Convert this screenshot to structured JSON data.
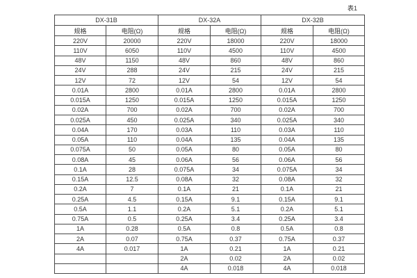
{
  "page": {
    "caption": "表1"
  },
  "table": {
    "groups": [
      {
        "name": "DX-31B",
        "spec_header": "规格",
        "res_header": "电阻(Ω)"
      },
      {
        "name": "DX-32A",
        "spec_header": "规格",
        "res_header": "电阻(Ω)"
      },
      {
        "name": "DX-32B",
        "spec_header": "规格",
        "res_header": "电阻(Ω)"
      }
    ],
    "rows": [
      [
        "220V",
        "20000",
        "220V",
        "18000",
        "220V",
        "18000"
      ],
      [
        "110V",
        "6050",
        "110V",
        "4500",
        "110V",
        "4500"
      ],
      [
        "48V",
        "1150",
        "48V",
        "860",
        "48V",
        "860"
      ],
      [
        "24V",
        "288",
        "24V",
        "215",
        "24V",
        "215"
      ],
      [
        "12V",
        "72",
        "12V",
        "54",
        "12V",
        "54"
      ],
      [
        "0.01A",
        "2800",
        "0.01A",
        "2800",
        "0.01A",
        "2800"
      ],
      [
        "0.015A",
        "1250",
        "0.015A",
        "1250",
        "0.015A",
        "1250"
      ],
      [
        "0.02A",
        "700",
        "0.02A",
        "700",
        "0.02A",
        "700"
      ],
      [
        "0.025A",
        "450",
        "0.025A",
        "340",
        "0.025A",
        "340"
      ],
      [
        "0.04A",
        "170",
        "0.03A",
        "110",
        "0.03A",
        "110"
      ],
      [
        "0.05A",
        "110",
        "0.04A",
        "135",
        "0.04A",
        "135"
      ],
      [
        "0.075A",
        "50",
        "0.05A",
        "80",
        "0.05A",
        "80"
      ],
      [
        "0.08A",
        "45",
        "0.06A",
        "56",
        "0.06A",
        "56"
      ],
      [
        "0.1A",
        "28",
        "0.075A",
        "34",
        "0.075A",
        "34"
      ],
      [
        "0.15A",
        "12.5",
        "0.08A",
        "32",
        "0.08A",
        "32"
      ],
      [
        "0.2A",
        "7",
        "0.1A",
        "21",
        "0.1A",
        "21"
      ],
      [
        "0.25A",
        "4.5",
        "0.15A",
        "9.1",
        "0.15A",
        "9.1"
      ],
      [
        "0.5A",
        "1.1",
        "0.2A",
        "5.1",
        "0.2A",
        "5.1"
      ],
      [
        "0.75A",
        "0.5",
        "0.25A",
        "3.4",
        "0.25A",
        "3.4"
      ],
      [
        "1A",
        "0.28",
        "0.5A",
        "0.8",
        "0.5A",
        "0.8"
      ],
      [
        "2A",
        "0.07",
        "0.75A",
        "0.37",
        "0.75A",
        "0.37"
      ],
      [
        "4A",
        "0.017",
        "1A",
        "0.21",
        "1A",
        "0.21"
      ],
      [
        "",
        "",
        "2A",
        "0.02",
        "2A",
        "0.02"
      ],
      [
        "",
        "",
        "4A",
        "0.018",
        "4A",
        "0.018"
      ]
    ]
  }
}
